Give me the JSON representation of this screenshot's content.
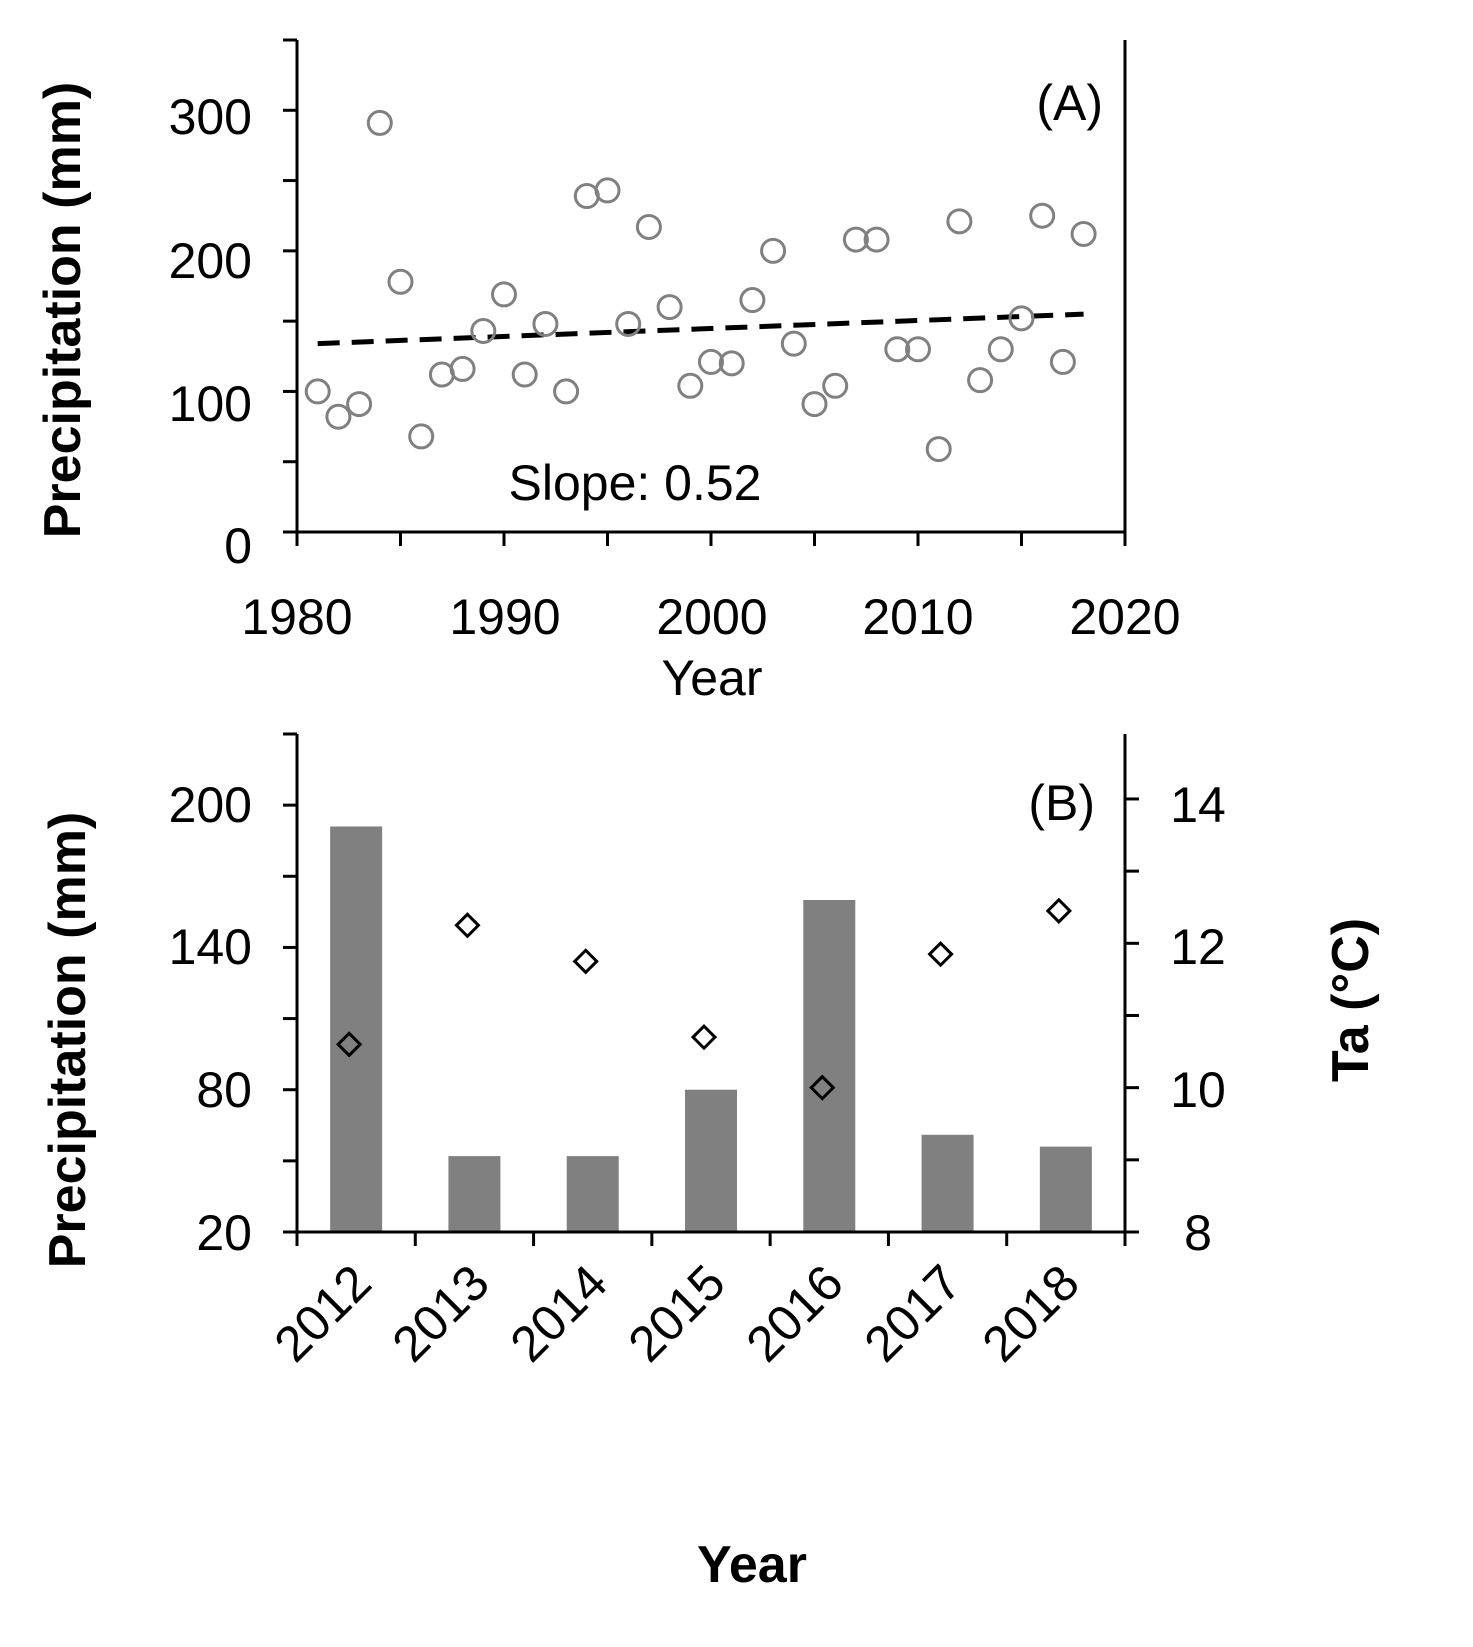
{
  "colors": {
    "marker": "#808080",
    "bar": "#808080",
    "axis": "#000000"
  },
  "chart_data": [
    {
      "id": "A",
      "type": "scatter",
      "panel_label": "(A)",
      "xlabel": "Year",
      "ylabel": "Precipitation (mm)",
      "xlim": [
        1980,
        2020
      ],
      "ylim": [
        0,
        350
      ],
      "xticks": [
        "1980",
        "1990",
        "2000",
        "2010",
        "2020"
      ],
      "yticks": [
        "0",
        "100",
        "200",
        "300"
      ],
      "annotation": "Slope: 0.52",
      "trend": {
        "slope": 0.52,
        "start": {
          "x": 1981,
          "y": 134
        },
        "end": {
          "x": 2018,
          "y": 155
        }
      },
      "series": [
        {
          "name": "Precipitation",
          "x": [
            1981,
            1982,
            1983,
            1984,
            1985,
            1986,
            1987,
            1988,
            1989,
            1990,
            1991,
            1992,
            1993,
            1994,
            1995,
            1996,
            1997,
            1998,
            1999,
            2000,
            2001,
            2002,
            2003,
            2004,
            2005,
            2006,
            2007,
            2008,
            2009,
            2010,
            2011,
            2012,
            2013,
            2014,
            2015,
            2016,
            2017,
            2018
          ],
          "y": [
            100,
            82,
            91,
            291,
            178,
            68,
            112,
            116,
            143,
            169,
            112,
            148,
            100,
            239,
            243,
            148,
            217,
            160,
            104,
            121,
            120,
            165,
            200,
            134,
            91,
            104,
            208,
            208,
            130,
            130,
            59,
            221,
            108,
            130,
            152,
            225,
            121,
            212
          ]
        }
      ]
    },
    {
      "id": "B",
      "type": "bar",
      "panel_label": "(B)",
      "xlabel": "Year",
      "ylabel": "Precipitation (mm)",
      "y2label": "Ta (°C)",
      "categories": [
        "2012",
        "2013",
        "2014",
        "2015",
        "2016",
        "2017",
        "2018"
      ],
      "ylim": [
        20,
        230
      ],
      "yticks": [
        "20",
        "80",
        "140",
        "200"
      ],
      "y2lim": [
        8,
        14.9
      ],
      "y2ticks": [
        "8",
        "10",
        "12",
        "14"
      ],
      "series": [
        {
          "name": "Precipitation",
          "type": "bar",
          "axis": "left",
          "values": [
            191,
            52,
            52,
            80,
            160,
            61,
            56
          ]
        },
        {
          "name": "Ta",
          "type": "scatter",
          "axis": "right",
          "marker": "diamond",
          "values": [
            10.6,
            12.25,
            11.75,
            10.7,
            10.0,
            11.85,
            12.45
          ]
        }
      ]
    }
  ]
}
